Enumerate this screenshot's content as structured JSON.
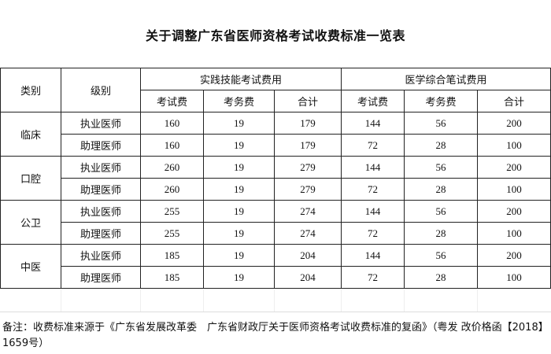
{
  "title": "关于调整广东省医师资格考试收费标准一览表",
  "headers": {
    "category": "类别",
    "level": "级别",
    "practical_group": "实践技能考试费用",
    "written_group": "医学综合笔试费用",
    "exam_fee": "考试费",
    "service_fee": "考务费",
    "total": "合计"
  },
  "groups": [
    {
      "category": "临床",
      "rows": [
        {
          "level": "执业医师",
          "p_exam": "160",
          "p_service": "19",
          "p_total": "179",
          "w_exam": "144",
          "w_service": "56",
          "w_total": "200"
        },
        {
          "level": "助理医师",
          "p_exam": "160",
          "p_service": "19",
          "p_total": "179",
          "w_exam": "72",
          "w_service": "28",
          "w_total": "100"
        }
      ]
    },
    {
      "category": "口腔",
      "rows": [
        {
          "level": "执业医师",
          "p_exam": "260",
          "p_service": "19",
          "p_total": "279",
          "w_exam": "144",
          "w_service": "56",
          "w_total": "200"
        },
        {
          "level": "助理医师",
          "p_exam": "260",
          "p_service": "19",
          "p_total": "279",
          "w_exam": "72",
          "w_service": "28",
          "w_total": "100"
        }
      ]
    },
    {
      "category": "公卫",
      "rows": [
        {
          "level": "执业医师",
          "p_exam": "255",
          "p_service": "19",
          "p_total": "274",
          "w_exam": "144",
          "w_service": "56",
          "w_total": "200"
        },
        {
          "level": "助理医师",
          "p_exam": "255",
          "p_service": "19",
          "p_total": "274",
          "w_exam": "72",
          "w_service": "28",
          "w_total": "100"
        }
      ]
    },
    {
      "category": "中医",
      "rows": [
        {
          "level": "执业医师",
          "p_exam": "185",
          "p_service": "19",
          "p_total": "204",
          "w_exam": "144",
          "w_service": "56",
          "w_total": "200"
        },
        {
          "level": "助理医师",
          "p_exam": "185",
          "p_service": "19",
          "p_total": "204",
          "w_exam": "72",
          "w_service": "28",
          "w_total": "100"
        }
      ]
    }
  ],
  "note": "备注：收费标准来源于《广东省发展改革委　广东省财政厅关于医师资格考试收费标准的复函》（粤发 改价格函【2018】1659号）"
}
